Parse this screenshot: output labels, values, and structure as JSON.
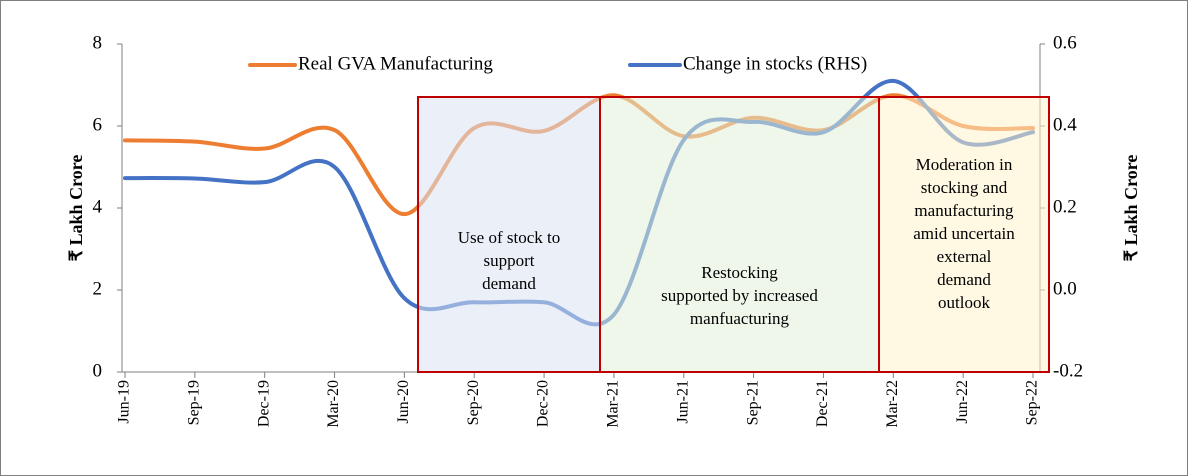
{
  "chart_data": {
    "type": "line",
    "categories": [
      "Jun-19",
      "Sep-19",
      "Dec-19",
      "Mar-20",
      "Jun-20",
      "Sep-20",
      "Dec-20",
      "Mar-21",
      "Jun-21",
      "Sep-21",
      "Dec-21",
      "Mar-22",
      "Jun-22",
      "Sep-22"
    ],
    "series": [
      {
        "name": "Real GVA Manufacturing",
        "color": "#ed7d31",
        "values": [
          5.65,
          5.62,
          5.45,
          5.9,
          3.85,
          5.95,
          5.88,
          6.75,
          5.75,
          6.2,
          5.9,
          6.75,
          6.0,
          5.95
        ]
      },
      {
        "name": "Change in stocks (RHS)",
        "color": "#4472c4",
        "axis": "y2",
        "values": [
          0.273,
          0.272,
          0.263,
          0.3,
          -0.02,
          -0.03,
          -0.03,
          -0.06,
          0.366,
          0.41,
          0.385,
          0.51,
          0.36,
          0.385
        ]
      }
    ],
    "ylabel": "₹ Lakh Crore",
    "y2label": "₹ Lakh Crore",
    "ylim": [
      0,
      8
    ],
    "yticks": [
      0,
      2,
      4,
      6,
      8
    ],
    "y2lim": [
      -0.2,
      0.6
    ],
    "y2ticks": [
      {
        "value": -0.2,
        "label": "-0.2"
      },
      {
        "value": 0,
        "label": "0.0"
      },
      {
        "value": 0.2,
        "label": "0.2"
      },
      {
        "value": 0.4,
        "label": "0.4"
      },
      {
        "value": 0.6,
        "label": "0.6"
      }
    ],
    "annotations": [
      {
        "lines": [
          "Use of stock to",
          "support",
          "demand"
        ],
        "color": "#dae3f3"
      },
      {
        "lines": [
          "Restocking",
          "supported by increased",
          "manfuacturing"
        ],
        "color": "#e2f0d9"
      },
      {
        "lines": [
          "Moderation in",
          "stocking and",
          "manufacturing",
          "amid uncertain",
          "external",
          "demand",
          "outlook"
        ],
        "color": "#fff2cc"
      }
    ],
    "legend": "top"
  }
}
